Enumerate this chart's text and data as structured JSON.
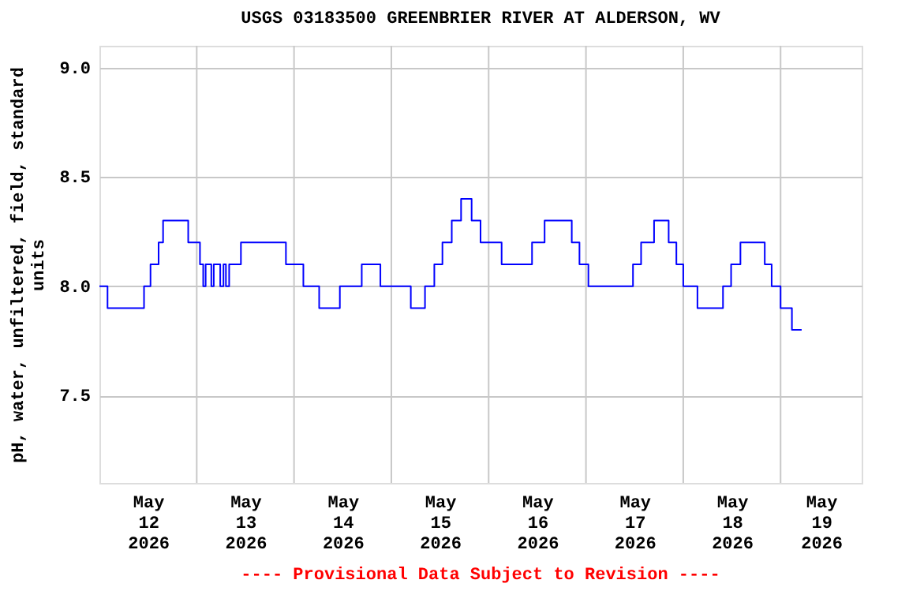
{
  "chart_data": {
    "type": "step",
    "title": "USGS 03183500 GREENBRIER RIVER AT ALDERSON, WV",
    "ylabel": "pH, water, unfiltered, field, standard units",
    "annotations": [
      "---- Provisional Data Subject to Revision ----"
    ],
    "x": [
      "2026-05-12T00:00",
      "2026-05-12T02:00",
      "2026-05-12T11:00",
      "2026-05-12T12:36",
      "2026-05-12T14:36",
      "2026-05-12T15:42",
      "2026-05-12T21:54",
      "2026-05-13T00:48",
      "2026-05-13T01:36",
      "2026-05-13T02:12",
      "2026-05-13T03:36",
      "2026-05-13T04:12",
      "2026-05-13T05:48",
      "2026-05-13T06:36",
      "2026-05-13T07:12",
      "2026-05-13T08:00",
      "2026-05-13T10:54",
      "2026-05-13T22:00",
      "2026-05-14T02:18",
      "2026-05-14T06:12",
      "2026-05-14T11:18",
      "2026-05-14T16:42",
      "2026-05-14T21:18",
      "2026-05-15T04:48",
      "2026-05-15T08:18",
      "2026-05-15T10:36",
      "2026-05-15T12:36",
      "2026-05-15T14:54",
      "2026-05-15T17:12",
      "2026-05-15T19:48",
      "2026-05-15T22:00",
      "2026-05-16T03:12",
      "2026-05-16T10:42",
      "2026-05-16T13:48",
      "2026-05-16T20:30",
      "2026-05-16T22:24",
      "2026-05-17T00:36",
      "2026-05-17T11:36",
      "2026-05-17T13:36",
      "2026-05-17T16:48",
      "2026-05-17T20:24",
      "2026-05-17T22:18",
      "2026-05-18T00:00",
      "2026-05-18T03:30",
      "2026-05-18T09:48",
      "2026-05-18T11:48",
      "2026-05-18T14:06",
      "2026-05-18T20:06",
      "2026-05-18T21:48",
      "2026-05-19T00:00",
      "2026-05-19T02:48",
      "2026-05-19T05:12"
    ],
    "series": [
      {
        "color": "#0000ff",
        "values": [
          8.0,
          7.9,
          8.0,
          8.1,
          8.2,
          8.3,
          8.2,
          8.1,
          8.0,
          8.1,
          8.0,
          8.1,
          8.0,
          8.1,
          8.0,
          8.1,
          8.2,
          8.1,
          8.0,
          7.9,
          8.0,
          8.1,
          8.0,
          7.9,
          8.0,
          8.1,
          8.2,
          8.3,
          8.4,
          8.3,
          8.2,
          8.1,
          8.2,
          8.3,
          8.2,
          8.1,
          8.0,
          8.1,
          8.2,
          8.3,
          8.2,
          8.1,
          8.0,
          7.9,
          8.0,
          8.1,
          8.2,
          8.1,
          8.0,
          7.9,
          7.8,
          7.8
        ]
      }
    ],
    "xlim": [
      "2026-05-12T00:00",
      "2026-05-19T20:00"
    ],
    "xticks": [
      {
        "value": "2026-05-12T12:00",
        "label": "May 12 2026"
      },
      {
        "value": "2026-05-13T12:00",
        "label": "May 13 2026"
      },
      {
        "value": "2026-05-14T12:00",
        "label": "May 14 2026"
      },
      {
        "value": "2026-05-15T12:00",
        "label": "May 15 2026"
      },
      {
        "value": "2026-05-16T12:00",
        "label": "May 16 2026"
      },
      {
        "value": "2026-05-17T12:00",
        "label": "May 17 2026"
      },
      {
        "value": "2026-05-18T12:00",
        "label": "May 18 2026"
      },
      {
        "value": "2026-05-19T10:00",
        "label": "May 19 2026"
      },
      {
        "value": "2026-05-13T00:00",
        "label": null
      },
      {
        "value": "2026-05-14T00:00",
        "label": null
      },
      {
        "value": "2026-05-15T00:00",
        "label": null
      },
      {
        "value": "2026-05-16T00:00",
        "label": null
      },
      {
        "value": "2026-05-17T00:00",
        "label": null
      },
      {
        "value": "2026-05-18T00:00",
        "label": null
      },
      {
        "value": "2026-05-19T00:00",
        "label": null
      }
    ],
    "ylim": [
      7.1,
      9.1
    ],
    "yticks": [
      7.5,
      {
        "value": 8.0,
        "label": "8.0"
      },
      8.5,
      {
        "value": 9.0,
        "label": "9.0"
      }
    ],
    "grid": true,
    "marker": "none",
    "line_style": "solid"
  }
}
